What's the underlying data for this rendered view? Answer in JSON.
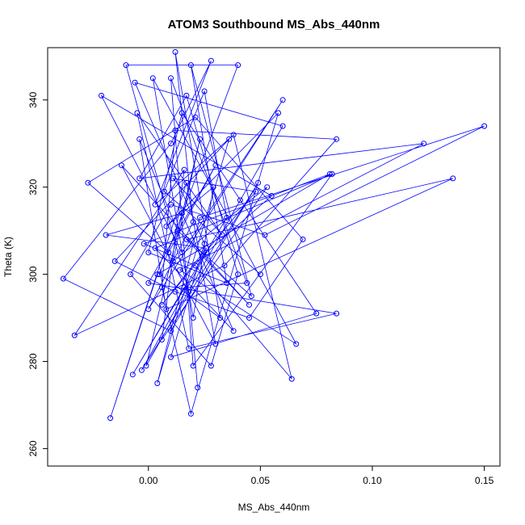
{
  "chart_data": {
    "type": "scatter",
    "connected": true,
    "title": "ATOM3 Southbound MS_Abs_440nm",
    "xlabel": "MS_Abs_440nm",
    "ylabel": "Theta (K)",
    "xlim": [
      -0.045,
      0.157
    ],
    "ylim": [
      256,
      352
    ],
    "xticks": [
      0.0,
      0.05,
      0.1,
      0.15
    ],
    "xtick_labels": [
      "0.00",
      "0.05",
      "0.10",
      "0.15"
    ],
    "yticks": [
      260,
      280,
      300,
      320,
      340
    ],
    "ytick_labels": [
      "260",
      "280",
      "300",
      "320",
      "340"
    ],
    "grid": false,
    "series": [
      {
        "color": "#0000ff",
        "marker": "open-circle",
        "points": [
          [
            0.022,
            274
          ],
          [
            0.018,
            296
          ],
          [
            -0.01,
            348
          ],
          [
            0.04,
            348
          ],
          [
            0.005,
            300
          ],
          [
            0.032,
            290
          ],
          [
            0.012,
            351
          ],
          [
            0.02,
            312
          ],
          [
            0.0,
            292
          ],
          [
            0.06,
            340
          ],
          [
            0.015,
            305
          ],
          [
            -0.021,
            341
          ],
          [
            0.055,
            318
          ],
          [
            0.026,
            305
          ],
          [
            -0.003,
            278
          ],
          [
            0.049,
            321
          ],
          [
            0.01,
            287
          ],
          [
            -0.038,
            299
          ],
          [
            0.01,
            330
          ],
          [
            0.028,
            349
          ],
          [
            0.003,
            316
          ],
          [
            0.038,
            332
          ],
          [
            0.064,
            276
          ],
          [
            0.021,
            302
          ],
          [
            -0.002,
            307
          ],
          [
            0.081,
            323
          ],
          [
            0.004,
            300
          ],
          [
            -0.017,
            267
          ],
          [
            0.017,
            321
          ],
          [
            0.03,
            284
          ],
          [
            -0.012,
            325
          ],
          [
            0.045,
            293
          ],
          [
            0.017,
            308
          ],
          [
            0.136,
            322
          ],
          [
            0.008,
            292
          ],
          [
            -0.004,
            331
          ],
          [
            0.013,
            310
          ],
          [
            0.046,
            295
          ],
          [
            0.019,
            348
          ],
          [
            0.035,
            298
          ],
          [
            0.0,
            305
          ],
          [
            0.015,
            337
          ],
          [
            0.075,
            291
          ],
          [
            0.01,
            281
          ],
          [
            0.025,
            307
          ],
          [
            -0.006,
            344
          ],
          [
            0.06,
            334
          ],
          [
            0.041,
            317
          ],
          [
            -0.001,
            279
          ],
          [
            0.023,
            331
          ],
          [
            0.011,
            303
          ],
          [
            0.053,
            320
          ],
          [
            0.006,
            285
          ],
          [
            0.016,
            324
          ],
          [
            -0.033,
            286
          ],
          [
            0.034,
            302
          ],
          [
            0.084,
            331
          ],
          [
            0.012,
            333
          ],
          [
            0.006,
            297
          ],
          [
            0.019,
            268
          ],
          [
            0.058,
            337
          ],
          [
            0.008,
            311
          ],
          [
            0.029,
            320
          ],
          [
            0.02,
            290
          ],
          [
            0.002,
            345
          ],
          [
            0.066,
            284
          ],
          [
            0.014,
            301
          ],
          [
            0.123,
            330
          ],
          [
            -0.004,
            322
          ],
          [
            0.017,
            341
          ],
          [
            0.04,
            300
          ],
          [
            0.028,
            279
          ],
          [
            -0.008,
            300
          ],
          [
            0.01,
            316
          ],
          [
            0.052,
            309
          ],
          [
            0.15,
            334
          ],
          [
            0.023,
            313
          ],
          [
            0.004,
            275
          ],
          [
            0.036,
            331
          ],
          [
            -0.015,
            303
          ],
          [
            0.012,
            296
          ],
          [
            0.045,
            290
          ],
          [
            0.069,
            308
          ],
          [
            0.021,
            336
          ],
          [
            -0.027,
            321
          ],
          [
            0.009,
            305
          ],
          [
            0.03,
            325
          ],
          [
            0.0,
            298
          ],
          [
            0.084,
            291
          ],
          [
            0.018,
            283
          ],
          [
            -0.005,
            337
          ],
          [
            0.033,
            309
          ],
          [
            0.011,
            322
          ],
          [
            0.048,
            319
          ],
          [
            0.006,
            293
          ],
          [
            0.026,
            306
          ],
          [
            -0.019,
            309
          ],
          [
            0.015,
            314
          ],
          [
            0.038,
            287
          ],
          [
            0.003,
            306
          ],
          [
            0.082,
            323
          ],
          [
            0.02,
            279
          ],
          [
            0.01,
            345
          ],
          [
            0.044,
            298
          ],
          [
            0.016,
            297
          ],
          [
            -0.007,
            277
          ],
          [
            0.035,
            313
          ],
          [
            0.025,
            342
          ],
          [
            0.007,
            319
          ],
          [
            0.05,
            300
          ]
        ]
      }
    ]
  }
}
